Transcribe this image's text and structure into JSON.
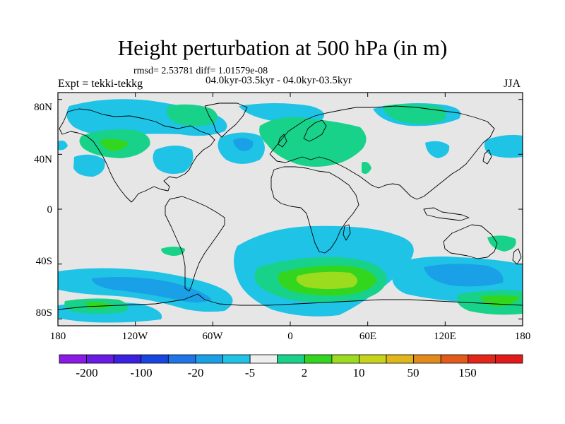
{
  "header": {
    "title": "Height perturbation at 500 hPa (in m)",
    "stats": "rmsd= 2.53781 diff= 1.01579e-08",
    "experiment": "Expt = tekki-tekkg",
    "period": "04.0kyr-03.5kyr - 04.0kyr-03.5kyr",
    "season": "JJA"
  },
  "map": {
    "lat_labels": [
      "80N",
      "40N",
      "0",
      "40S",
      "80S"
    ],
    "lon_labels": [
      "180",
      "120W",
      "60W",
      "0",
      "60E",
      "120E",
      "180"
    ],
    "lat_values": [
      80,
      40,
      0,
      -40,
      -80
    ],
    "lon_values": [
      -180,
      -120,
      -60,
      0,
      60,
      120,
      180
    ],
    "background_color": "#e6e6e6",
    "coastline_color": "#000000"
  },
  "colorbar": {
    "colors": [
      "#8b1ae6",
      "#6a1ae6",
      "#3a20e0",
      "#1846e2",
      "#1f74e8",
      "#1aa0e6",
      "#1ec3e6",
      "#eeeeee",
      "#18d28a",
      "#33d61f",
      "#9bdc1f",
      "#c8d41a",
      "#e0b61a",
      "#e48a1a",
      "#e45a1a",
      "#e4261a",
      "#e41a1a"
    ],
    "labels": [
      "-200",
      "-100",
      "-20",
      "-5",
      "2",
      "10",
      "50",
      "150"
    ]
  }
}
